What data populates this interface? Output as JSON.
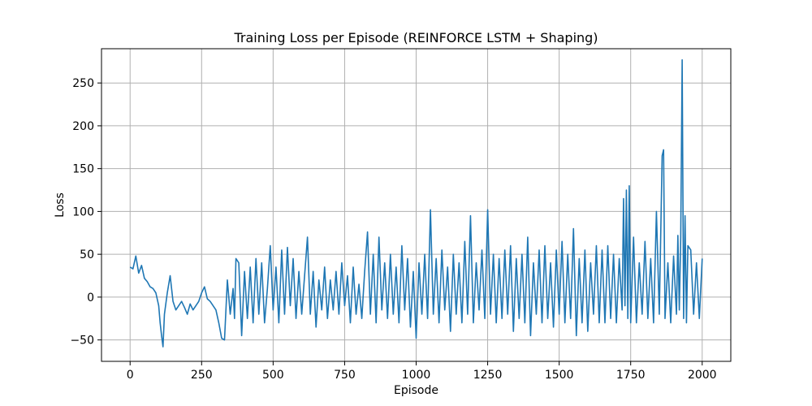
{
  "chart_data": {
    "type": "line",
    "title": "Training Loss per Episode (REINFORCE LSTM + Shaping)",
    "xlabel": "Episode",
    "ylabel": "Loss",
    "xlim": [
      -100,
      2100
    ],
    "ylim": [
      -75,
      290
    ],
    "x_ticks": [
      0,
      250,
      500,
      750,
      1000,
      1250,
      1500,
      1750,
      2000
    ],
    "y_ticks": [
      -50,
      0,
      50,
      100,
      150,
      200,
      250
    ],
    "grid": true,
    "legend": "none",
    "series": [
      {
        "color": "#1f77b4",
        "points": [
          [
            0,
            35
          ],
          [
            10,
            33
          ],
          [
            20,
            48
          ],
          [
            30,
            28
          ],
          [
            40,
            37
          ],
          [
            50,
            22
          ],
          [
            60,
            18
          ],
          [
            70,
            12
          ],
          [
            80,
            10
          ],
          [
            90,
            5
          ],
          [
            100,
            -10
          ],
          [
            105,
            -30
          ],
          [
            110,
            -45
          ],
          [
            115,
            -58
          ],
          [
            120,
            -20
          ],
          [
            130,
            5
          ],
          [
            140,
            25
          ],
          [
            150,
            -5
          ],
          [
            160,
            -15
          ],
          [
            170,
            -10
          ],
          [
            180,
            -5
          ],
          [
            190,
            -12
          ],
          [
            200,
            -20
          ],
          [
            210,
            -8
          ],
          [
            220,
            -15
          ],
          [
            230,
            -10
          ],
          [
            240,
            -5
          ],
          [
            250,
            5
          ],
          [
            260,
            12
          ],
          [
            270,
            -2
          ],
          [
            280,
            -5
          ],
          [
            290,
            -10
          ],
          [
            300,
            -15
          ],
          [
            310,
            -30
          ],
          [
            320,
            -48
          ],
          [
            330,
            -50
          ],
          [
            340,
            20
          ],
          [
            350,
            -20
          ],
          [
            360,
            10
          ],
          [
            365,
            -25
          ],
          [
            370,
            45
          ],
          [
            380,
            40
          ],
          [
            390,
            -45
          ],
          [
            400,
            30
          ],
          [
            410,
            -25
          ],
          [
            420,
            35
          ],
          [
            430,
            -30
          ],
          [
            440,
            45
          ],
          [
            450,
            -20
          ],
          [
            460,
            40
          ],
          [
            470,
            -30
          ],
          [
            480,
            10
          ],
          [
            490,
            60
          ],
          [
            500,
            -15
          ],
          [
            510,
            35
          ],
          [
            520,
            -30
          ],
          [
            530,
            55
          ],
          [
            540,
            -20
          ],
          [
            550,
            58
          ],
          [
            560,
            -10
          ],
          [
            570,
            45
          ],
          [
            580,
            -25
          ],
          [
            590,
            30
          ],
          [
            600,
            -20
          ],
          [
            610,
            25
          ],
          [
            620,
            70
          ],
          [
            630,
            -20
          ],
          [
            640,
            30
          ],
          [
            650,
            -35
          ],
          [
            660,
            20
          ],
          [
            670,
            -15
          ],
          [
            680,
            35
          ],
          [
            690,
            -25
          ],
          [
            700,
            20
          ],
          [
            710,
            -15
          ],
          [
            720,
            30
          ],
          [
            730,
            -20
          ],
          [
            740,
            40
          ],
          [
            750,
            -10
          ],
          [
            760,
            25
          ],
          [
            770,
            -30
          ],
          [
            780,
            35
          ],
          [
            790,
            -20
          ],
          [
            800,
            15
          ],
          [
            810,
            -25
          ],
          [
            820,
            30
          ],
          [
            830,
            76
          ],
          [
            840,
            -20
          ],
          [
            850,
            50
          ],
          [
            860,
            -30
          ],
          [
            870,
            70
          ],
          [
            880,
            -15
          ],
          [
            890,
            40
          ],
          [
            900,
            -25
          ],
          [
            910,
            50
          ],
          [
            920,
            -20
          ],
          [
            930,
            35
          ],
          [
            940,
            -30
          ],
          [
            950,
            60
          ],
          [
            960,
            -15
          ],
          [
            970,
            45
          ],
          [
            980,
            -35
          ],
          [
            990,
            30
          ],
          [
            1000,
            -48
          ],
          [
            1010,
            40
          ],
          [
            1020,
            -20
          ],
          [
            1030,
            50
          ],
          [
            1040,
            -25
          ],
          [
            1050,
            102
          ],
          [
            1060,
            -20
          ],
          [
            1070,
            45
          ],
          [
            1080,
            -30
          ],
          [
            1090,
            55
          ],
          [
            1100,
            -15
          ],
          [
            1110,
            35
          ],
          [
            1120,
            -40
          ],
          [
            1130,
            50
          ],
          [
            1140,
            -20
          ],
          [
            1150,
            40
          ],
          [
            1160,
            -30
          ],
          [
            1170,
            65
          ],
          [
            1180,
            -20
          ],
          [
            1190,
            95
          ],
          [
            1200,
            -30
          ],
          [
            1210,
            40
          ],
          [
            1220,
            -15
          ],
          [
            1230,
            55
          ],
          [
            1240,
            -25
          ],
          [
            1250,
            102
          ],
          [
            1260,
            -20
          ],
          [
            1270,
            50
          ],
          [
            1280,
            -30
          ],
          [
            1290,
            45
          ],
          [
            1300,
            -25
          ],
          [
            1310,
            55
          ],
          [
            1320,
            -20
          ],
          [
            1330,
            60
          ],
          [
            1340,
            -40
          ],
          [
            1350,
            45
          ],
          [
            1360,
            -25
          ],
          [
            1370,
            50
          ],
          [
            1380,
            -30
          ],
          [
            1390,
            70
          ],
          [
            1400,
            -45
          ],
          [
            1410,
            40
          ],
          [
            1420,
            -20
          ],
          [
            1430,
            55
          ],
          [
            1440,
            -30
          ],
          [
            1450,
            60
          ],
          [
            1460,
            -25
          ],
          [
            1470,
            40
          ],
          [
            1480,
            -35
          ],
          [
            1490,
            55
          ],
          [
            1500,
            -20
          ],
          [
            1510,
            65
          ],
          [
            1520,
            -30
          ],
          [
            1530,
            50
          ],
          [
            1540,
            -25
          ],
          [
            1550,
            80
          ],
          [
            1560,
            -45
          ],
          [
            1570,
            45
          ],
          [
            1580,
            -30
          ],
          [
            1590,
            55
          ],
          [
            1600,
            -40
          ],
          [
            1610,
            40
          ],
          [
            1620,
            -20
          ],
          [
            1630,
            60
          ],
          [
            1640,
            -30
          ],
          [
            1650,
            55
          ],
          [
            1660,
            -30
          ],
          [
            1670,
            60
          ],
          [
            1680,
            -25
          ],
          [
            1690,
            50
          ],
          [
            1700,
            -30
          ],
          [
            1710,
            45
          ],
          [
            1720,
            -15
          ],
          [
            1725,
            115
          ],
          [
            1730,
            -10
          ],
          [
            1735,
            125
          ],
          [
            1740,
            -25
          ],
          [
            1745,
            130
          ],
          [
            1750,
            -30
          ],
          [
            1760,
            70
          ],
          [
            1770,
            -30
          ],
          [
            1780,
            40
          ],
          [
            1790,
            -20
          ],
          [
            1800,
            65
          ],
          [
            1810,
            -25
          ],
          [
            1820,
            45
          ],
          [
            1830,
            -30
          ],
          [
            1840,
            100
          ],
          [
            1850,
            -20
          ],
          [
            1860,
            165
          ],
          [
            1865,
            172
          ],
          [
            1870,
            -25
          ],
          [
            1880,
            40
          ],
          [
            1890,
            -30
          ],
          [
            1900,
            48
          ],
          [
            1910,
            -20
          ],
          [
            1915,
            72
          ],
          [
            1920,
            -15
          ],
          [
            1925,
            70
          ],
          [
            1930,
            277
          ],
          [
            1935,
            -25
          ],
          [
            1940,
            95
          ],
          [
            1945,
            -30
          ],
          [
            1950,
            60
          ],
          [
            1960,
            55
          ],
          [
            1970,
            -20
          ],
          [
            1980,
            40
          ],
          [
            1990,
            -25
          ],
          [
            2000,
            45
          ]
        ]
      }
    ]
  }
}
